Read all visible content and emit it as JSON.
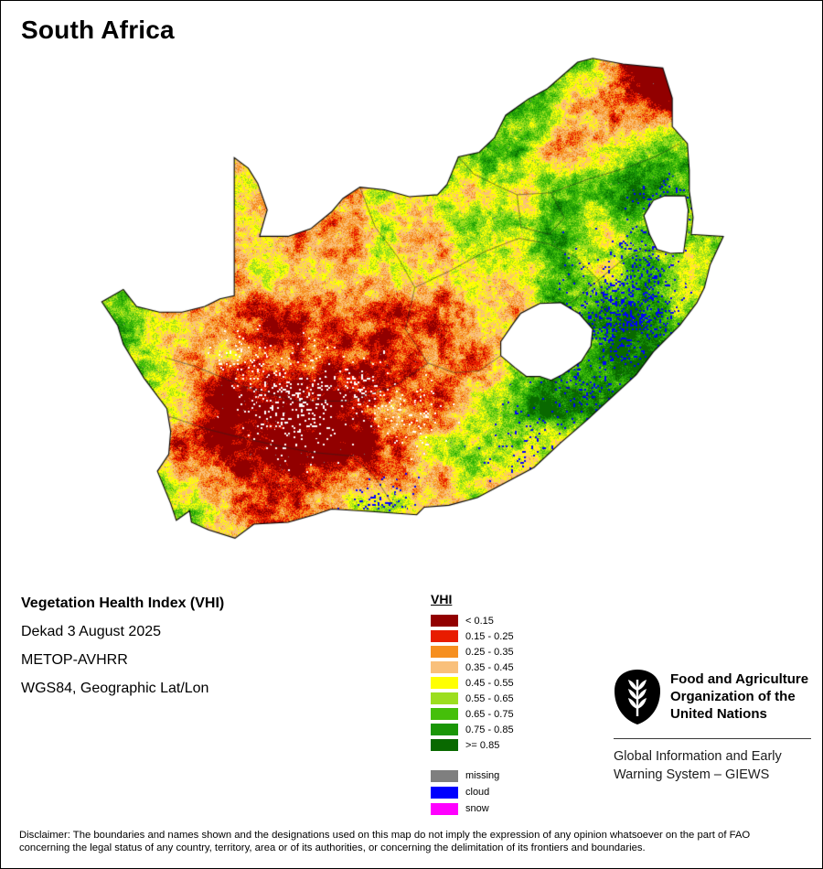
{
  "page": {
    "title": "South Africa"
  },
  "info": {
    "product_title": "Vegetation Health Index (VHI)",
    "dekad": "Dekad 3 August 2025",
    "sensor": "METOP-AVHRR",
    "projection": "WGS84, Geographic Lat/Lon"
  },
  "legend": {
    "title": "VHI",
    "classes": [
      {
        "label": "< 0.15",
        "color": "#920000"
      },
      {
        "label": "0.15 - 0.25",
        "color": "#e81c00"
      },
      {
        "label": "0.25 - 0.35",
        "color": "#f68f1f"
      },
      {
        "label": "0.35 - 0.45",
        "color": "#f9c07b"
      },
      {
        "label": "0.45 - 0.55",
        "color": "#ffff02"
      },
      {
        "label": "0.55 - 0.65",
        "color": "#9cde1f"
      },
      {
        "label": "0.65 - 0.75",
        "color": "#45bf0a"
      },
      {
        "label": "0.75 - 0.85",
        "color": "#1a9607"
      },
      {
        "label": ">= 0.85",
        "color": "#096900"
      }
    ],
    "extras": [
      {
        "label": "missing",
        "color": "#7f7f7f"
      },
      {
        "label": "cloud",
        "color": "#0000fe"
      },
      {
        "label": "snow",
        "color": "#ff00ff"
      }
    ]
  },
  "branding": {
    "fao_name_lines": [
      "Food and Agriculture",
      "Organization of the",
      "United Nations"
    ],
    "giews_lines": [
      "Global Information and Early",
      "Warning System – GIEWS"
    ]
  },
  "disclaimer": {
    "lines": [
      "Disclaimer: The boundaries and names shown and the designations used on this map do not imply the expression of any opinion whatsoever on the part of FAO",
      "concerning the legal status of any country, territory, area or of its authorities, or concerning the delimitation of its frontiers and boundaries."
    ]
  }
}
